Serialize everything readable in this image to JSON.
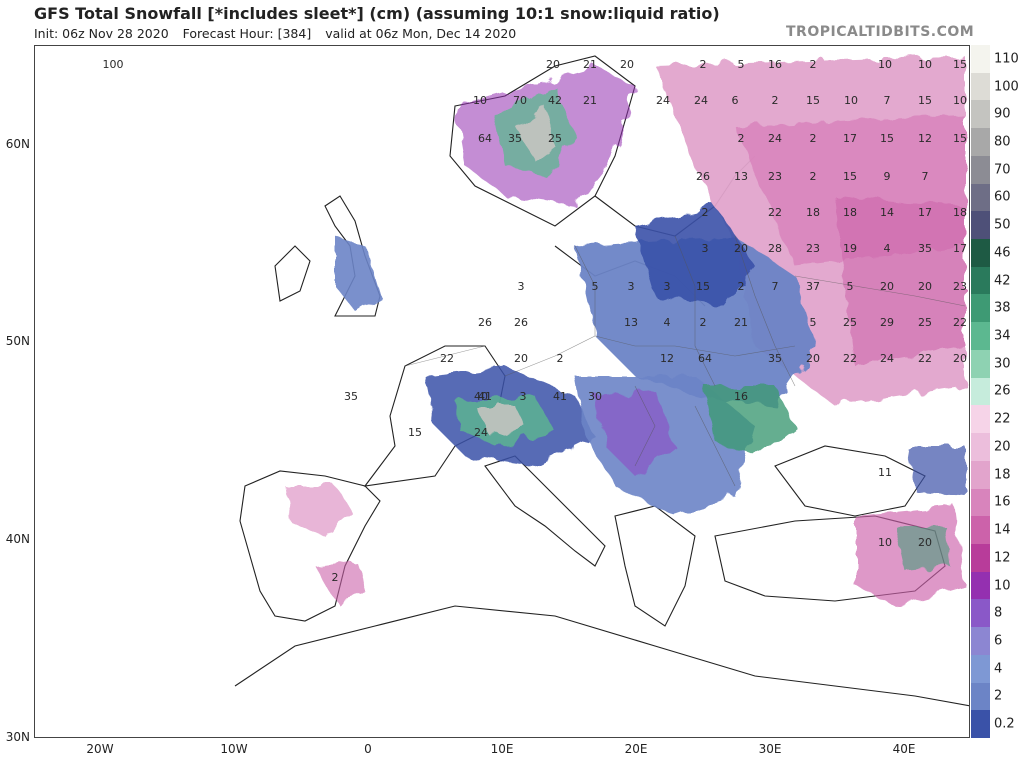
{
  "title": "GFS Total Snowfall [*includes sleet*] (cm) (assuming 10:1 snow:liquid ratio)",
  "init": "Init: 06z Nov 28 2020",
  "forecast_hour": "Forecast Hour: [384]",
  "valid": "valid at 06z Mon, Dec 14 2020",
  "credit": "TROPICALTIDBITS.COM",
  "lat_labels": [
    "60N",
    "50N",
    "40N",
    "30N"
  ],
  "lon_labels": [
    "20W",
    "10W",
    "0",
    "10E",
    "20E",
    "30E",
    "40E"
  ],
  "legend": [
    {
      "label": "110",
      "color": "#f4f4ee"
    },
    {
      "label": "100",
      "color": "#dddcd6"
    },
    {
      "label": "90",
      "color": "#c4c4c0"
    },
    {
      "label": "80",
      "color": "#a8a8a8"
    },
    {
      "label": "70",
      "color": "#8c8c94"
    },
    {
      "label": "60",
      "color": "#6e6e86"
    },
    {
      "label": "50",
      "color": "#4e5078"
    },
    {
      "label": "46",
      "color": "#1e5a44"
    },
    {
      "label": "42",
      "color": "#2a7a5c"
    },
    {
      "label": "38",
      "color": "#3e9a74"
    },
    {
      "label": "34",
      "color": "#5cb890"
    },
    {
      "label": "30",
      "color": "#8ed2b2"
    },
    {
      "label": "26",
      "color": "#c6ecdc"
    },
    {
      "label": "22",
      "color": "#f6d4e8"
    },
    {
      "label": "20",
      "color": "#ecbedc"
    },
    {
      "label": "18",
      "color": "#e2a4cc"
    },
    {
      "label": "16",
      "color": "#d884bc"
    },
    {
      "label": "14",
      "color": "#cc62aa"
    },
    {
      "label": "12",
      "color": "#b83c9a"
    },
    {
      "label": "10",
      "color": "#9430b0"
    },
    {
      "label": "8",
      "color": "#8a58c8"
    },
    {
      "label": "6",
      "color": "#8c86d2"
    },
    {
      "label": "4",
      "color": "#7e98d4"
    },
    {
      "label": "2",
      "color": "#6c84c6"
    },
    {
      "label": "0.2",
      "color": "#3a52a8"
    }
  ],
  "map_values": [
    {
      "t": "100"
    },
    {
      "t": "20"
    },
    {
      "t": "21"
    },
    {
      "t": "20"
    },
    {
      "t": "70"
    },
    {
      "t": "42"
    },
    {
      "t": "21"
    },
    {
      "t": "10"
    },
    {
      "t": "64"
    },
    {
      "t": "35"
    },
    {
      "t": "25"
    },
    {
      "t": "2"
    },
    {
      "t": "5"
    },
    {
      "t": "16"
    },
    {
      "t": "2"
    },
    {
      "t": "10"
    },
    {
      "t": "10"
    },
    {
      "t": "15"
    },
    {
      "t": "24"
    },
    {
      "t": "24"
    },
    {
      "t": "6"
    },
    {
      "t": "15"
    },
    {
      "t": "10"
    },
    {
      "t": "7"
    },
    {
      "t": "15"
    },
    {
      "t": "10"
    },
    {
      "t": "24"
    },
    {
      "t": "2"
    },
    {
      "t": "17"
    },
    {
      "t": "15"
    },
    {
      "t": "12"
    },
    {
      "t": "15"
    },
    {
      "t": "26"
    },
    {
      "t": "23"
    },
    {
      "t": "2"
    },
    {
      "t": "15"
    },
    {
      "t": "9"
    },
    {
      "t": "7"
    },
    {
      "t": "13"
    },
    {
      "t": "22"
    },
    {
      "t": "18"
    },
    {
      "t": "18"
    },
    {
      "t": "14"
    },
    {
      "t": "17"
    },
    {
      "t": "18"
    },
    {
      "t": "3"
    },
    {
      "t": "20"
    },
    {
      "t": "28"
    },
    {
      "t": "23"
    },
    {
      "t": "19"
    },
    {
      "t": "4"
    },
    {
      "t": "35"
    },
    {
      "t": "17"
    },
    {
      "t": "15"
    },
    {
      "t": "2"
    },
    {
      "t": "7"
    },
    {
      "t": "37"
    },
    {
      "t": "5"
    },
    {
      "t": "20"
    },
    {
      "t": "20"
    },
    {
      "t": "23"
    },
    {
      "t": "2"
    },
    {
      "t": "21"
    },
    {
      "t": "5"
    },
    {
      "t": "25"
    },
    {
      "t": "29"
    },
    {
      "t": "25"
    },
    {
      "t": "22"
    },
    {
      "t": "35"
    },
    {
      "t": "20"
    },
    {
      "t": "22"
    },
    {
      "t": "24"
    },
    {
      "t": "22"
    },
    {
      "t": "20"
    },
    {
      "t": "3"
    },
    {
      "t": "5"
    },
    {
      "t": "3"
    },
    {
      "t": "3"
    },
    {
      "t": "26"
    },
    {
      "t": "26"
    },
    {
      "t": "13"
    },
    {
      "t": "4"
    },
    {
      "t": "22"
    },
    {
      "t": "20"
    },
    {
      "t": "2"
    },
    {
      "t": "12"
    },
    {
      "t": "64"
    },
    {
      "t": "41"
    },
    {
      "t": "40"
    },
    {
      "t": "16"
    },
    {
      "t": "30"
    },
    {
      "t": "24"
    },
    {
      "t": "15"
    },
    {
      "t": "35"
    },
    {
      "t": "11"
    },
    {
      "t": "10"
    },
    {
      "t": "20"
    },
    {
      "t": "2"
    },
    {
      "t": "2"
    },
    {
      "t": "2"
    },
    {
      "t": "2"
    },
    {
      "t": "41"
    },
    {
      "t": "3"
    }
  ]
}
